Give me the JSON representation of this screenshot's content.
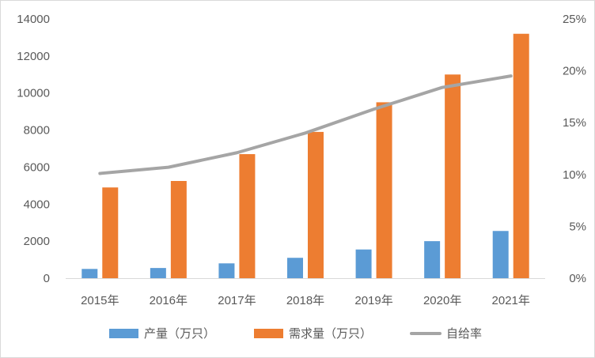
{
  "chart_data": {
    "type": "bar",
    "categories": [
      "2015年",
      "2016年",
      "2017年",
      "2018年",
      "2019年",
      "2020年",
      "2021年"
    ],
    "series": [
      {
        "name": "产量（万只）",
        "type": "bar",
        "axis": "left",
        "color": "#5B9BD5",
        "values": [
          500,
          550,
          800,
          1100,
          1550,
          2000,
          2550
        ]
      },
      {
        "name": "需求量（万只）",
        "type": "bar",
        "axis": "left",
        "color": "#ED7D31",
        "values": [
          4900,
          5250,
          6700,
          7900,
          9500,
          11000,
          13200
        ]
      },
      {
        "name": "自给率",
        "type": "line",
        "axis": "right",
        "color": "#A5A5A5",
        "values": [
          0.101,
          0.107,
          0.121,
          0.14,
          0.163,
          0.184,
          0.195
        ]
      }
    ],
    "left_axis": {
      "min": 0,
      "max": 14000,
      "ticks": [
        0,
        2000,
        4000,
        6000,
        8000,
        10000,
        12000,
        14000
      ]
    },
    "right_axis": {
      "min": 0,
      "max": 0.25,
      "ticks": [
        "0%",
        "5%",
        "10%",
        "15%",
        "20%",
        "25%"
      ]
    },
    "grid": false,
    "legend": "bottom"
  }
}
